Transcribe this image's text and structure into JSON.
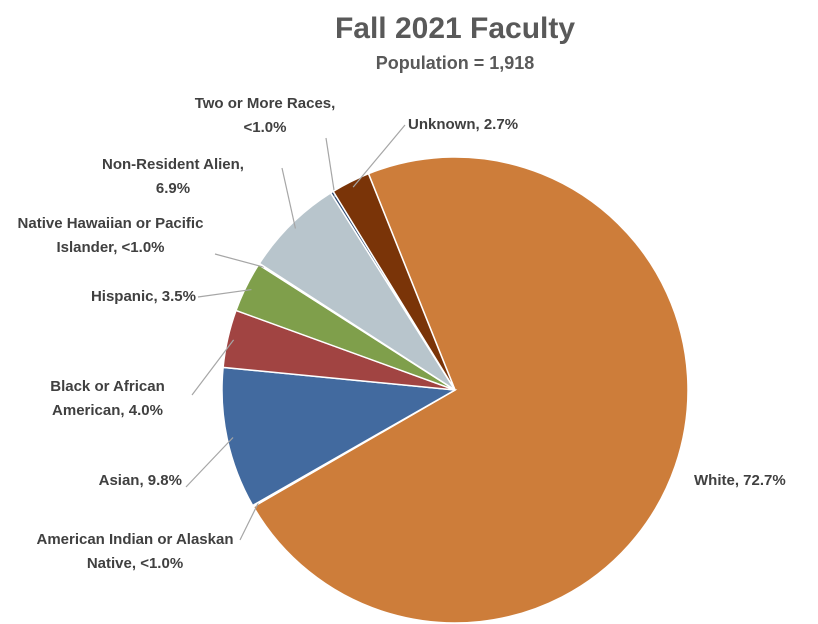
{
  "chart_data": {
    "type": "pie",
    "title": "Fall 2021 Faculty",
    "subtitle": "Population = 1,918",
    "categories": [
      "White,",
      "American Indian or Alaskan Native,",
      "Asian,",
      "Black or African American,",
      "Hispanic,",
      "Native Hawaiian or Pacific Islander,",
      "Non-Resident Alien,",
      "Two or More Races,",
      "Unknown,"
    ],
    "values": [
      72.7,
      0.1,
      9.8,
      4.0,
      3.5,
      0.1,
      6.9,
      0.2,
      2.7
    ],
    "value_labels": [
      "72.7%",
      "<1.0%",
      "9.8%",
      "4.0%",
      "3.5%",
      "<1.0%",
      "6.9%",
      "<1.0%",
      "2.7%"
    ],
    "colors": [
      "#cd7d3a",
      "#4a6fa0",
      "#426a9f",
      "#a14442",
      "#7f9f4b",
      "#6e5a8c",
      "#b8c5cc",
      "#2e4a72",
      "#7a3408"
    ]
  }
}
